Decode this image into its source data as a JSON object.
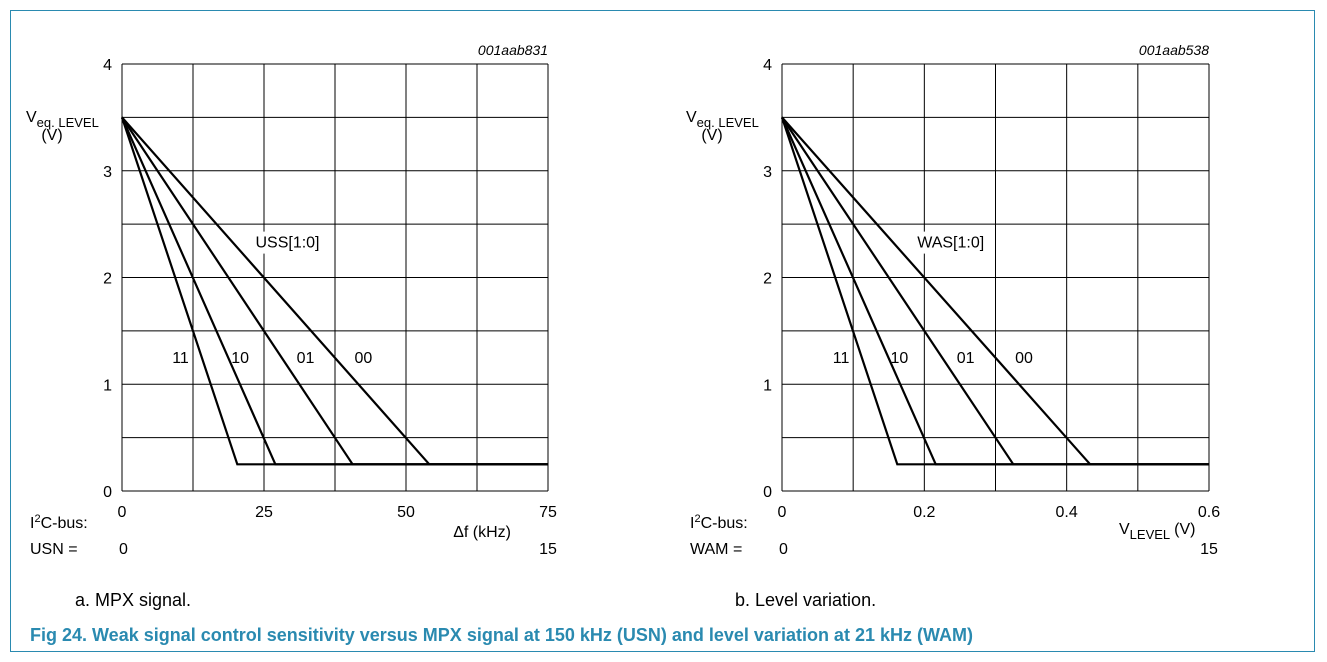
{
  "chart_data": [
    {
      "type": "line",
      "code": "001aab831",
      "ylabel_main": "V",
      "ylabel_sub": "eq. LEVEL",
      "ylabel_unit": "(V)",
      "xlabel": "Δf (kHz)",
      "xlim": [
        0,
        75
      ],
      "ylim": [
        0,
        4
      ],
      "x_ticks": [
        "0",
        "25",
        "50",
        "75"
      ],
      "y_ticks": [
        "0",
        "1",
        "2",
        "3",
        "4"
      ],
      "grid": true,
      "curve_group_label": "USS[1:0]",
      "bus_label_main": "I",
      "bus_label_sup": "2",
      "bus_label_rest": "C-bus:",
      "reg_label": "USN =",
      "reg_min": "0",
      "reg_max": "15",
      "series": [
        {
          "name": "11",
          "x": [
            0,
            20.3,
            75
          ],
          "y": [
            3.5,
            0.25,
            0.25
          ]
        },
        {
          "name": "10",
          "x": [
            0,
            27,
            75
          ],
          "y": [
            3.5,
            0.25,
            0.25
          ]
        },
        {
          "name": "01",
          "x": [
            0,
            40.6,
            75
          ],
          "y": [
            3.5,
            0.25,
            0.25
          ]
        },
        {
          "name": "00",
          "x": [
            0,
            54.1,
            75
          ],
          "y": [
            3.5,
            0.25,
            0.25
          ]
        }
      ],
      "series_label_points": [
        {
          "x": 10.3,
          "y": 1.2
        },
        {
          "x": 20.8,
          "y": 1.2
        },
        {
          "x": 32.3,
          "y": 1.2
        },
        {
          "x": 42.5,
          "y": 1.2
        }
      ],
      "group_label_point": {
        "x": 23.5,
        "y": 2.28
      }
    },
    {
      "type": "line",
      "code": "001aab538",
      "ylabel_main": "V",
      "ylabel_sub": "eq. LEVEL",
      "ylabel_unit": "(V)",
      "xlabel_main": "V",
      "xlabel_sub": "LEVEL",
      "xlabel_unit": "(V)",
      "xlim": [
        0,
        0.6
      ],
      "ylim": [
        0,
        4
      ],
      "x_ticks": [
        "0",
        "0.2",
        "0.4",
        "0.6"
      ],
      "y_ticks": [
        "0",
        "1",
        "2",
        "3",
        "4"
      ],
      "grid": true,
      "curve_group_label": "WAS[1:0]",
      "bus_label_main": "I",
      "bus_label_sup": "2",
      "bus_label_rest": "C-bus:",
      "reg_label": "WAM =",
      "reg_min": "0",
      "reg_max": "15",
      "series": [
        {
          "name": "11",
          "x": [
            0,
            0.162,
            0.6
          ],
          "y": [
            3.5,
            0.25,
            0.25
          ]
        },
        {
          "name": "10",
          "x": [
            0,
            0.216,
            0.6
          ],
          "y": [
            3.5,
            0.25,
            0.25
          ]
        },
        {
          "name": "01",
          "x": [
            0,
            0.325,
            0.6
          ],
          "y": [
            3.5,
            0.25,
            0.25
          ]
        },
        {
          "name": "00",
          "x": [
            0,
            0.433,
            0.6
          ],
          "y": [
            3.5,
            0.25,
            0.25
          ]
        }
      ],
      "series_label_points": [
        {
          "x": 0.083,
          "y": 1.2
        },
        {
          "x": 0.165,
          "y": 1.2
        },
        {
          "x": 0.258,
          "y": 1.2
        },
        {
          "x": 0.34,
          "y": 1.2
        }
      ],
      "group_label_point": {
        "x": 0.19,
        "y": 2.28
      }
    }
  ],
  "captions": {
    "a": "a.   MPX signal.",
    "b": "b.   Level variation.",
    "figure": "Fig 24. Weak signal control sensitivity versus MPX signal at 150 kHz (USN) and level variation at 21 kHz (WAM)"
  }
}
